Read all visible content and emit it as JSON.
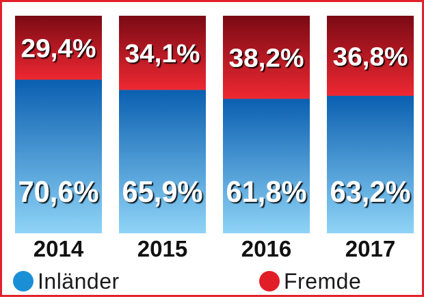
{
  "chart_data": {
    "type": "bar",
    "stacked": true,
    "normalized": true,
    "categories": [
      "2014",
      "2015",
      "2016",
      "2017"
    ],
    "series": [
      {
        "name": "Inländer",
        "values": [
          70.6,
          65.9,
          61.8,
          63.2
        ],
        "labels": [
          "70,6%",
          "65,9%",
          "61,8%",
          "63,2%"
        ],
        "color": "#1a7bc8"
      },
      {
        "name": "Fremde",
        "values": [
          29.4,
          34.1,
          38.2,
          36.8
        ],
        "labels": [
          "29,4%",
          "34,1%",
          "38,2%",
          "36,8%"
        ],
        "color": "#d21a26"
      }
    ],
    "ylim": [
      0,
      100
    ],
    "legend_position": "bottom",
    "grid": false,
    "colors": {
      "blue_top": "#0a5fb0",
      "blue_bottom": "#8fd4f7",
      "red_top": "#7a0a14",
      "red_bottom": "#ee2832",
      "legend_blue": "#1a8fd6",
      "legend_red": "#e11d27",
      "frame": "#e3202b"
    }
  }
}
